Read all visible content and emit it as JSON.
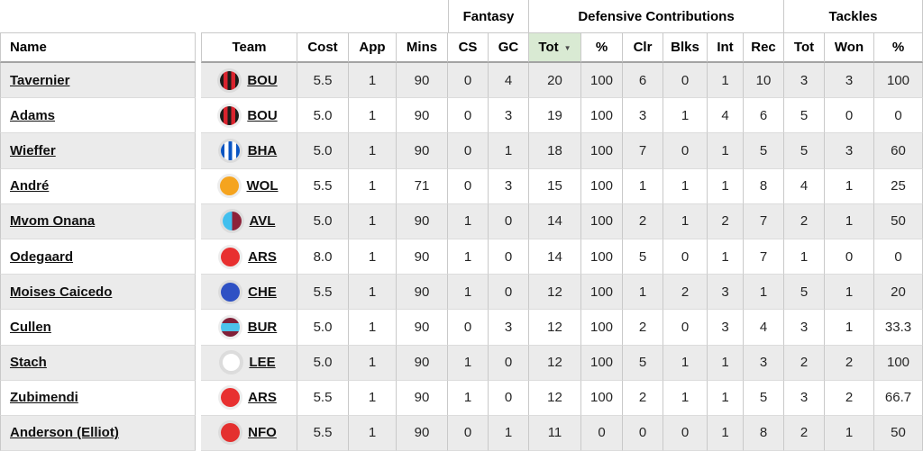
{
  "colors": {
    "sorted_header_bg": "#d9ead3",
    "row_stripe": "#ebebeb",
    "grid_border": "#c9c9c9",
    "header_underline": "#a3a3a3",
    "row_divider": "#dcdcdc"
  },
  "header": {
    "groups": {
      "fantasy": "Fantasy",
      "defensive": "Defensive Contributions",
      "tackles": "Tackles"
    },
    "columns": [
      "Name",
      "Team",
      "Cost",
      "App",
      "Mins",
      "CS",
      "GC",
      "Tot",
      "%",
      "Clr",
      "Blks",
      "Int",
      "Rec",
      "Tot",
      "Won",
      "%"
    ],
    "sorted_column": "Tot",
    "sort_indicator": "▼"
  },
  "team_badges": {
    "BOU": {
      "type": "stripes-v",
      "colors": [
        "#1c1c1a",
        "#d9232d"
      ]
    },
    "BHA": {
      "type": "stripes-v",
      "colors": [
        "#0a55c3",
        "#ffffff"
      ]
    },
    "WOL": {
      "type": "solid",
      "colors": [
        "#f5a41f"
      ]
    },
    "AVL": {
      "type": "halves-v",
      "colors": [
        "#41bfee",
        "#8d2239"
      ]
    },
    "ARS": {
      "type": "solid",
      "colors": [
        "#e83030"
      ]
    },
    "CHE": {
      "type": "solid",
      "colors": [
        "#2e51c4"
      ]
    },
    "BUR": {
      "type": "band-h",
      "colors": [
        "#812038",
        "#4cc3ea"
      ]
    },
    "LEE": {
      "type": "solid",
      "colors": [
        "#ffffff"
      ],
      "ring": "#dcdcdc"
    },
    "NFO": {
      "type": "solid",
      "colors": [
        "#e4302f"
      ]
    }
  },
  "table": {
    "rows": [
      {
        "name": "Tavernier",
        "team": "BOU",
        "cost": "5.5",
        "app": "1",
        "mins": "90",
        "cs": "0",
        "gc": "4",
        "dc_tot": "20",
        "dc_pct": "100",
        "clr": "6",
        "blks": "0",
        "int": "1",
        "rec": "10",
        "tk_tot": "3",
        "tk_won": "3",
        "tk_pct": "100"
      },
      {
        "name": "Adams",
        "team": "BOU",
        "cost": "5.0",
        "app": "1",
        "mins": "90",
        "cs": "0",
        "gc": "3",
        "dc_tot": "19",
        "dc_pct": "100",
        "clr": "3",
        "blks": "1",
        "int": "4",
        "rec": "6",
        "tk_tot": "5",
        "tk_won": "0",
        "tk_pct": "0"
      },
      {
        "name": "Wieffer",
        "team": "BHA",
        "cost": "5.0",
        "app": "1",
        "mins": "90",
        "cs": "0",
        "gc": "1",
        "dc_tot": "18",
        "dc_pct": "100",
        "clr": "7",
        "blks": "0",
        "int": "1",
        "rec": "5",
        "tk_tot": "5",
        "tk_won": "3",
        "tk_pct": "60"
      },
      {
        "name": "André",
        "team": "WOL",
        "cost": "5.5",
        "app": "1",
        "mins": "71",
        "cs": "0",
        "gc": "3",
        "dc_tot": "15",
        "dc_pct": "100",
        "clr": "1",
        "blks": "1",
        "int": "1",
        "rec": "8",
        "tk_tot": "4",
        "tk_won": "1",
        "tk_pct": "25"
      },
      {
        "name": "Mvom Onana",
        "team": "AVL",
        "cost": "5.0",
        "app": "1",
        "mins": "90",
        "cs": "1",
        "gc": "0",
        "dc_tot": "14",
        "dc_pct": "100",
        "clr": "2",
        "blks": "1",
        "int": "2",
        "rec": "7",
        "tk_tot": "2",
        "tk_won": "1",
        "tk_pct": "50"
      },
      {
        "name": "Odegaard",
        "team": "ARS",
        "cost": "8.0",
        "app": "1",
        "mins": "90",
        "cs": "1",
        "gc": "0",
        "dc_tot": "14",
        "dc_pct": "100",
        "clr": "5",
        "blks": "0",
        "int": "1",
        "rec": "7",
        "tk_tot": "1",
        "tk_won": "0",
        "tk_pct": "0"
      },
      {
        "name": "Moises Caicedo",
        "team": "CHE",
        "cost": "5.5",
        "app": "1",
        "mins": "90",
        "cs": "1",
        "gc": "0",
        "dc_tot": "12",
        "dc_pct": "100",
        "clr": "1",
        "blks": "2",
        "int": "3",
        "rec": "1",
        "tk_tot": "5",
        "tk_won": "1",
        "tk_pct": "20"
      },
      {
        "name": "Cullen",
        "team": "BUR",
        "cost": "5.0",
        "app": "1",
        "mins": "90",
        "cs": "0",
        "gc": "3",
        "dc_tot": "12",
        "dc_pct": "100",
        "clr": "2",
        "blks": "0",
        "int": "3",
        "rec": "4",
        "tk_tot": "3",
        "tk_won": "1",
        "tk_pct": "33.3"
      },
      {
        "name": "Stach",
        "team": "LEE",
        "cost": "5.0",
        "app": "1",
        "mins": "90",
        "cs": "1",
        "gc": "0",
        "dc_tot": "12",
        "dc_pct": "100",
        "clr": "5",
        "blks": "1",
        "int": "1",
        "rec": "3",
        "tk_tot": "2",
        "tk_won": "2",
        "tk_pct": "100"
      },
      {
        "name": "Zubimendi",
        "team": "ARS",
        "cost": "5.5",
        "app": "1",
        "mins": "90",
        "cs": "1",
        "gc": "0",
        "dc_tot": "12",
        "dc_pct": "100",
        "clr": "2",
        "blks": "1",
        "int": "1",
        "rec": "5",
        "tk_tot": "3",
        "tk_won": "2",
        "tk_pct": "66.7"
      },
      {
        "name": "Anderson (Elliot)",
        "team": "NFO",
        "cost": "5.5",
        "app": "1",
        "mins": "90",
        "cs": "0",
        "gc": "1",
        "dc_tot": "11",
        "dc_pct": "0",
        "clr": "0",
        "blks": "0",
        "int": "1",
        "rec": "8",
        "tk_tot": "2",
        "tk_won": "1",
        "tk_pct": "50"
      }
    ]
  }
}
